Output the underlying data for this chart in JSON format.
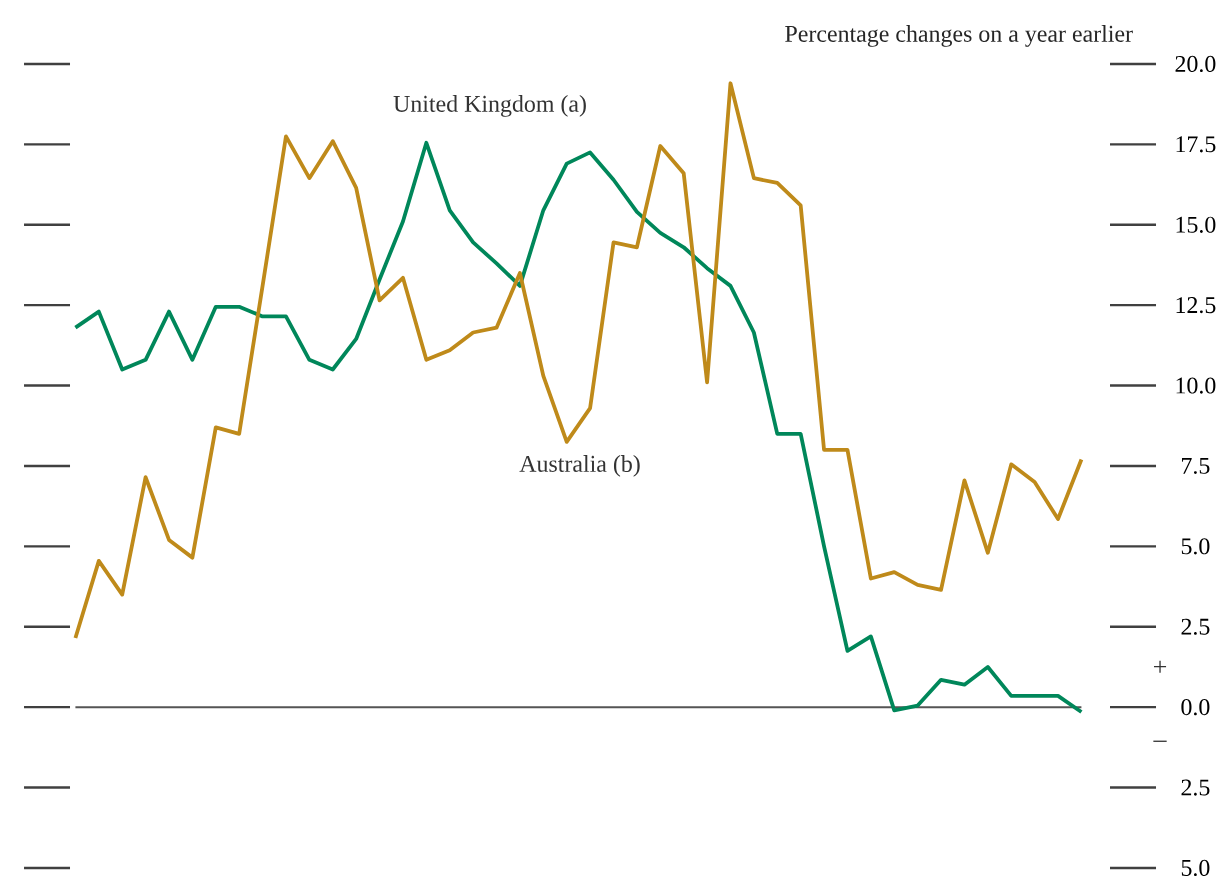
{
  "chart_data": {
    "type": "line",
    "subtitle": "Percentage changes on a year earlier",
    "categories": [
      null,
      null,
      null,
      null,
      null,
      null,
      null,
      null,
      null,
      null,
      null,
      null,
      null,
      null,
      null,
      null,
      null,
      null,
      null,
      null,
      null,
      null,
      null,
      null,
      null,
      null,
      null,
      null,
      null,
      null,
      null,
      null,
      null,
      null,
      null,
      null,
      null,
      null,
      null,
      null,
      null,
      null,
      null,
      null
    ],
    "series": [
      {
        "name": "United Kingdom (a)",
        "color": "#00875a",
        "values": [
          11.8,
          12.3,
          10.5,
          10.8,
          12.3,
          10.8,
          12.45,
          12.45,
          12.15,
          12.15,
          10.8,
          10.5,
          11.45,
          13.3,
          15.1,
          17.55,
          15.45,
          14.45,
          13.8,
          13.1,
          15.45,
          16.9,
          17.25,
          16.4,
          15.4,
          14.75,
          14.3,
          13.65,
          13.1,
          11.65,
          8.5,
          8.5,
          5.0,
          1.75,
          2.2,
          -0.1,
          0.05,
          0.85,
          0.7,
          1.25,
          0.35,
          0.35,
          0.35,
          -0.15
        ]
      },
      {
        "name": "Australia (b)",
        "color": "#bf8a1a",
        "values": [
          2.15,
          4.55,
          3.5,
          7.15,
          5.2,
          4.65,
          8.7,
          8.5,
          13.1,
          17.75,
          16.45,
          17.6,
          16.15,
          12.65,
          13.35,
          10.8,
          11.1,
          11.65,
          11.8,
          13.5,
          10.3,
          8.25,
          9.3,
          14.45,
          14.3,
          17.45,
          16.6,
          10.1,
          19.4,
          16.45,
          16.3,
          15.6,
          8.0,
          8.0,
          4.0,
          4.2,
          3.8,
          3.65,
          7.05,
          4.8,
          7.55,
          7.0,
          5.85,
          7.7
        ]
      }
    ],
    "ylim": [
      -5,
      20
    ],
    "yticks": [
      {
        "value": 20,
        "label": "20.0"
      },
      {
        "value": 17.5,
        "label": "17.5"
      },
      {
        "value": 15,
        "label": "15.0"
      },
      {
        "value": 12.5,
        "label": "12.5"
      },
      {
        "value": 10,
        "label": "10.0"
      },
      {
        "value": 7.5,
        "label": "7.5"
      },
      {
        "value": 5,
        "label": "5.0"
      },
      {
        "value": 2.5,
        "label": "2.5"
      },
      {
        "value": 0,
        "label": "0.0"
      },
      {
        "value": -2.5,
        "label": "2.5"
      },
      {
        "value": -5,
        "label": "5.0"
      }
    ],
    "tick_labels": "y",
    "ref_lines": [
      {
        "axis": "y",
        "value": 0,
        "color": "#555555"
      }
    ],
    "annotations": [
      "+",
      "–"
    ]
  }
}
